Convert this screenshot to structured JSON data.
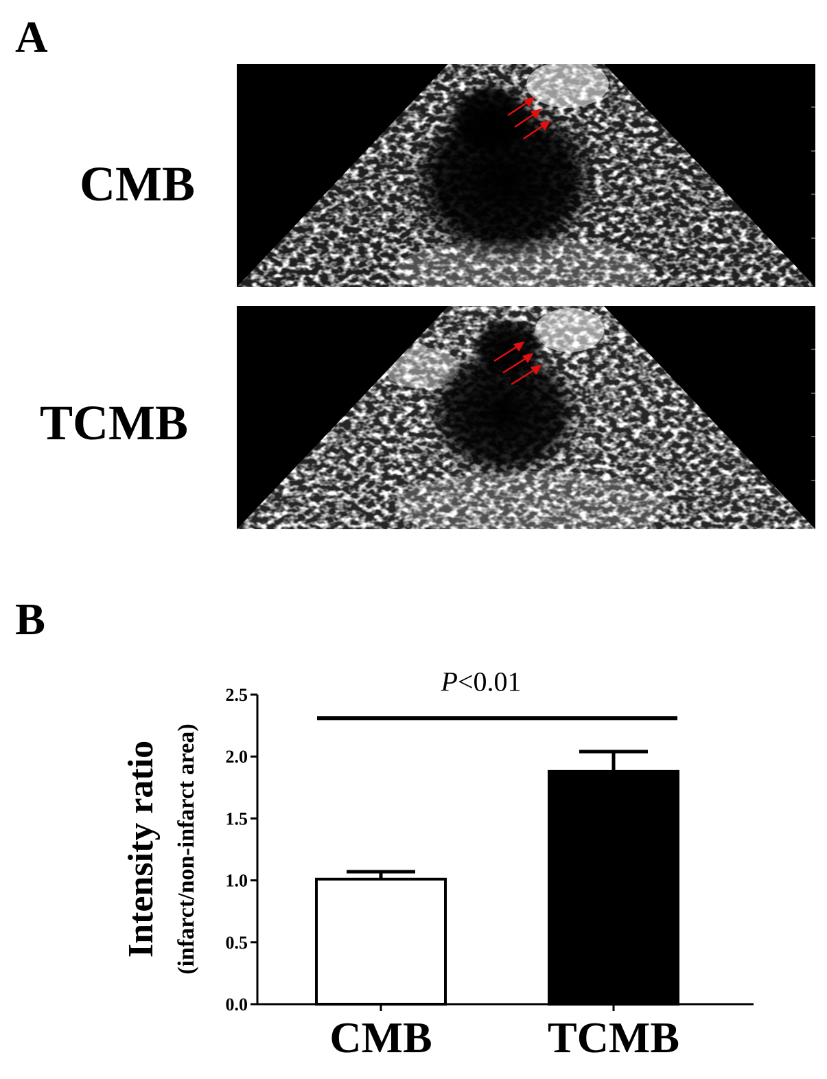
{
  "panels": {
    "a_letter": "A",
    "b_letter": "B"
  },
  "panel_a": {
    "rows": [
      {
        "label": "CMB",
        "image": "contrast-echocardiography-sector-image"
      },
      {
        "label": "TCMB",
        "image": "contrast-echocardiography-sector-image"
      }
    ],
    "arrow_color": "#e01010"
  },
  "chart_data": {
    "type": "bar",
    "categories": [
      "CMB",
      "TCMB"
    ],
    "values": [
      1.01,
      1.88
    ],
    "error": [
      0.06,
      0.16
    ],
    "bar_colors": [
      "#ffffff",
      "#000000"
    ],
    "ylabel": "Intensity ratio",
    "ylabel_sub": "(infarct/non-infarct area)",
    "xlabel": "",
    "ylim": [
      0,
      2.5
    ],
    "yticks": [
      "0.0",
      "0.5",
      "1.0",
      "1.5",
      "2.0",
      "2.5"
    ],
    "significance": {
      "y": 2.31,
      "p_symbol": "P",
      "p_text": "<0.01"
    },
    "grid": false,
    "legend": "none"
  }
}
